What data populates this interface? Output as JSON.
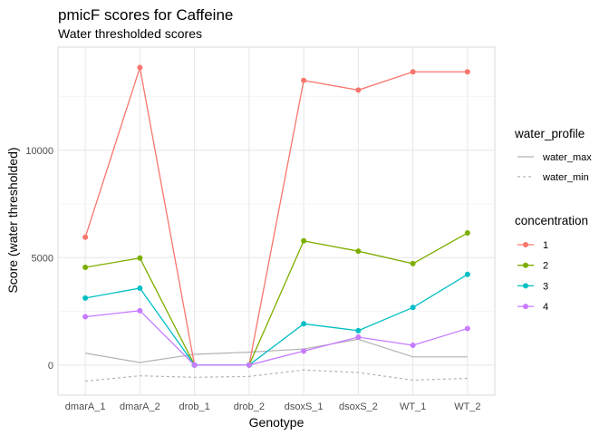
{
  "chart_data": {
    "type": "line",
    "title": "pmicF scores for Caffeine",
    "subtitle": "Water thresholded scores",
    "xlabel": "Genotype",
    "ylabel": "Score (water thresholded)",
    "categories": [
      "dmarA_1",
      "dmarA_2",
      "drob_1",
      "drob_2",
      "dsoxS_1",
      "dsoxS_2",
      "WT_1",
      "WT_2"
    ],
    "ylim": [
      -1400,
      14800
    ],
    "yticks": [
      0,
      5000,
      10000
    ],
    "ytick_labels": [
      "0",
      "5000",
      "10000"
    ],
    "grid": true,
    "legend_position": "right",
    "water_profile_legend": {
      "title": "water_profile",
      "entries": [
        {
          "label": "water_max",
          "style": "solid",
          "color": "#b3b3b3"
        },
        {
          "label": "water_min",
          "style": "dashed",
          "color": "#b3b3b3"
        }
      ]
    },
    "concentration_legend": {
      "title": "concentration",
      "entries": [
        {
          "label": "1",
          "color": "#F8766D"
        },
        {
          "label": "2",
          "color": "#7CAE00"
        },
        {
          "label": "3",
          "color": "#00BFC4"
        },
        {
          "label": "4",
          "color": "#C77CFF"
        }
      ]
    },
    "water_series": [
      {
        "name": "water_max",
        "style": "solid",
        "color": "#b3b3b3",
        "values": [
          550,
          120,
          500,
          600,
          750,
          1200,
          380,
          380
        ]
      },
      {
        "name": "water_min",
        "style": "dashed",
        "color": "#b3b3b3",
        "values": [
          -750,
          -500,
          -570,
          -530,
          -230,
          -350,
          -700,
          -620
        ]
      }
    ],
    "series": [
      {
        "name": "1",
        "color": "#F8766D",
        "values": [
          5950,
          13850,
          0,
          0,
          13250,
          12800,
          13650,
          13650
        ]
      },
      {
        "name": "2",
        "color": "#7CAE00",
        "values": [
          4550,
          4980,
          0,
          0,
          5780,
          5300,
          4720,
          6150
        ]
      },
      {
        "name": "3",
        "color": "#00BFC4",
        "values": [
          3120,
          3580,
          0,
          0,
          1920,
          1600,
          2680,
          4220
        ]
      },
      {
        "name": "4",
        "color": "#C77CFF",
        "values": [
          2250,
          2530,
          0,
          0,
          650,
          1300,
          920,
          1700
        ]
      }
    ]
  }
}
